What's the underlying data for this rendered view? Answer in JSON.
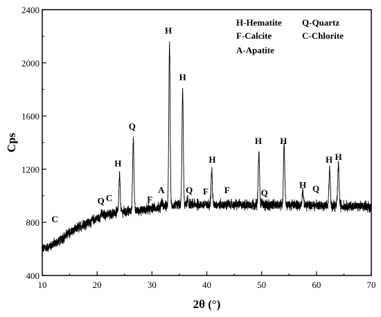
{
  "chart_data": {
    "type": "line",
    "xlabel": "2θ (°)",
    "ylabel": "Cps",
    "xlim": [
      10,
      70
    ],
    "ylim": [
      400,
      2400
    ],
    "x_ticks": [
      10,
      20,
      30,
      40,
      50,
      60,
      70
    ],
    "y_ticks": [
      400,
      800,
      1200,
      1600,
      2000,
      2400
    ],
    "grid": false,
    "legend_position": "top-right",
    "legend": [
      "H-Hematite",
      "Q-Quartz",
      "F-Calcite",
      "C-Chlorite",
      "A-Apatite"
    ],
    "series": [
      {
        "color": "#000000",
        "noise_amplitude": 35,
        "x": [
          10,
          11,
          12,
          13,
          14,
          15,
          16,
          17,
          18,
          19,
          20,
          21,
          22,
          23,
          24,
          25,
          26,
          27,
          28,
          29,
          30,
          31,
          32,
          33,
          34,
          35,
          36,
          37,
          38,
          39,
          40,
          42,
          44,
          46,
          48,
          50,
          52,
          54,
          56,
          58,
          60,
          62,
          64,
          66,
          68,
          70
        ],
        "y": [
          600,
          615,
          635,
          660,
          690,
          720,
          745,
          770,
          790,
          810,
          830,
          848,
          860,
          870,
          876,
          880,
          884,
          888,
          892,
          897,
          905,
          912,
          918,
          922,
          926,
          930,
          932,
          932,
          933,
          933,
          933,
          933,
          933,
          932,
          932,
          932,
          931,
          931,
          930,
          929,
          928,
          926,
          924,
          922,
          920,
          918
        ],
        "peaks": [
          {
            "x": 20.8,
            "y": 870
          },
          {
            "x": 24.1,
            "y": 1150
          },
          {
            "x": 26.6,
            "y": 1430
          },
          {
            "x": 29.4,
            "y": 905
          },
          {
            "x": 31.8,
            "y": 960
          },
          {
            "x": 33.2,
            "y": 2150
          },
          {
            "x": 35.6,
            "y": 1795
          },
          {
            "x": 36.5,
            "y": 960
          },
          {
            "x": 40.9,
            "y": 1185
          },
          {
            "x": 49.5,
            "y": 1330
          },
          {
            "x": 50.1,
            "y": 955
          },
          {
            "x": 54.1,
            "y": 1395
          },
          {
            "x": 57.5,
            "y": 1040
          },
          {
            "x": 62.4,
            "y": 1200
          },
          {
            "x": 64.0,
            "y": 1240
          }
        ]
      }
    ],
    "annotations": [
      {
        "text": "C",
        "x": 12.3,
        "y": 800
      },
      {
        "text": "Q",
        "x": 20.7,
        "y": 940
      },
      {
        "text": "C",
        "x": 22.2,
        "y": 960
      },
      {
        "text": "H",
        "x": 23.8,
        "y": 1220
      },
      {
        "text": "Q",
        "x": 26.4,
        "y": 1500
      },
      {
        "text": "F",
        "x": 29.6,
        "y": 950
      },
      {
        "text": "A",
        "x": 31.7,
        "y": 1020
      },
      {
        "text": "H",
        "x": 33.0,
        "y": 2220
      },
      {
        "text": "Q",
        "x": 36.8,
        "y": 1020
      },
      {
        "text": "H",
        "x": 35.6,
        "y": 1870
      },
      {
        "text": "F",
        "x": 39.8,
        "y": 1010
      },
      {
        "text": "H",
        "x": 41.0,
        "y": 1250
      },
      {
        "text": "F",
        "x": 43.7,
        "y": 1020
      },
      {
        "text": "H",
        "x": 49.4,
        "y": 1390
      },
      {
        "text": "Q",
        "x": 50.5,
        "y": 1000
      },
      {
        "text": "H",
        "x": 54.0,
        "y": 1390
      },
      {
        "text": "H",
        "x": 57.5,
        "y": 1060
      },
      {
        "text": "Q",
        "x": 59.9,
        "y": 1030
      },
      {
        "text": "H",
        "x": 62.3,
        "y": 1250
      },
      {
        "text": "H",
        "x": 64.0,
        "y": 1270
      }
    ]
  }
}
